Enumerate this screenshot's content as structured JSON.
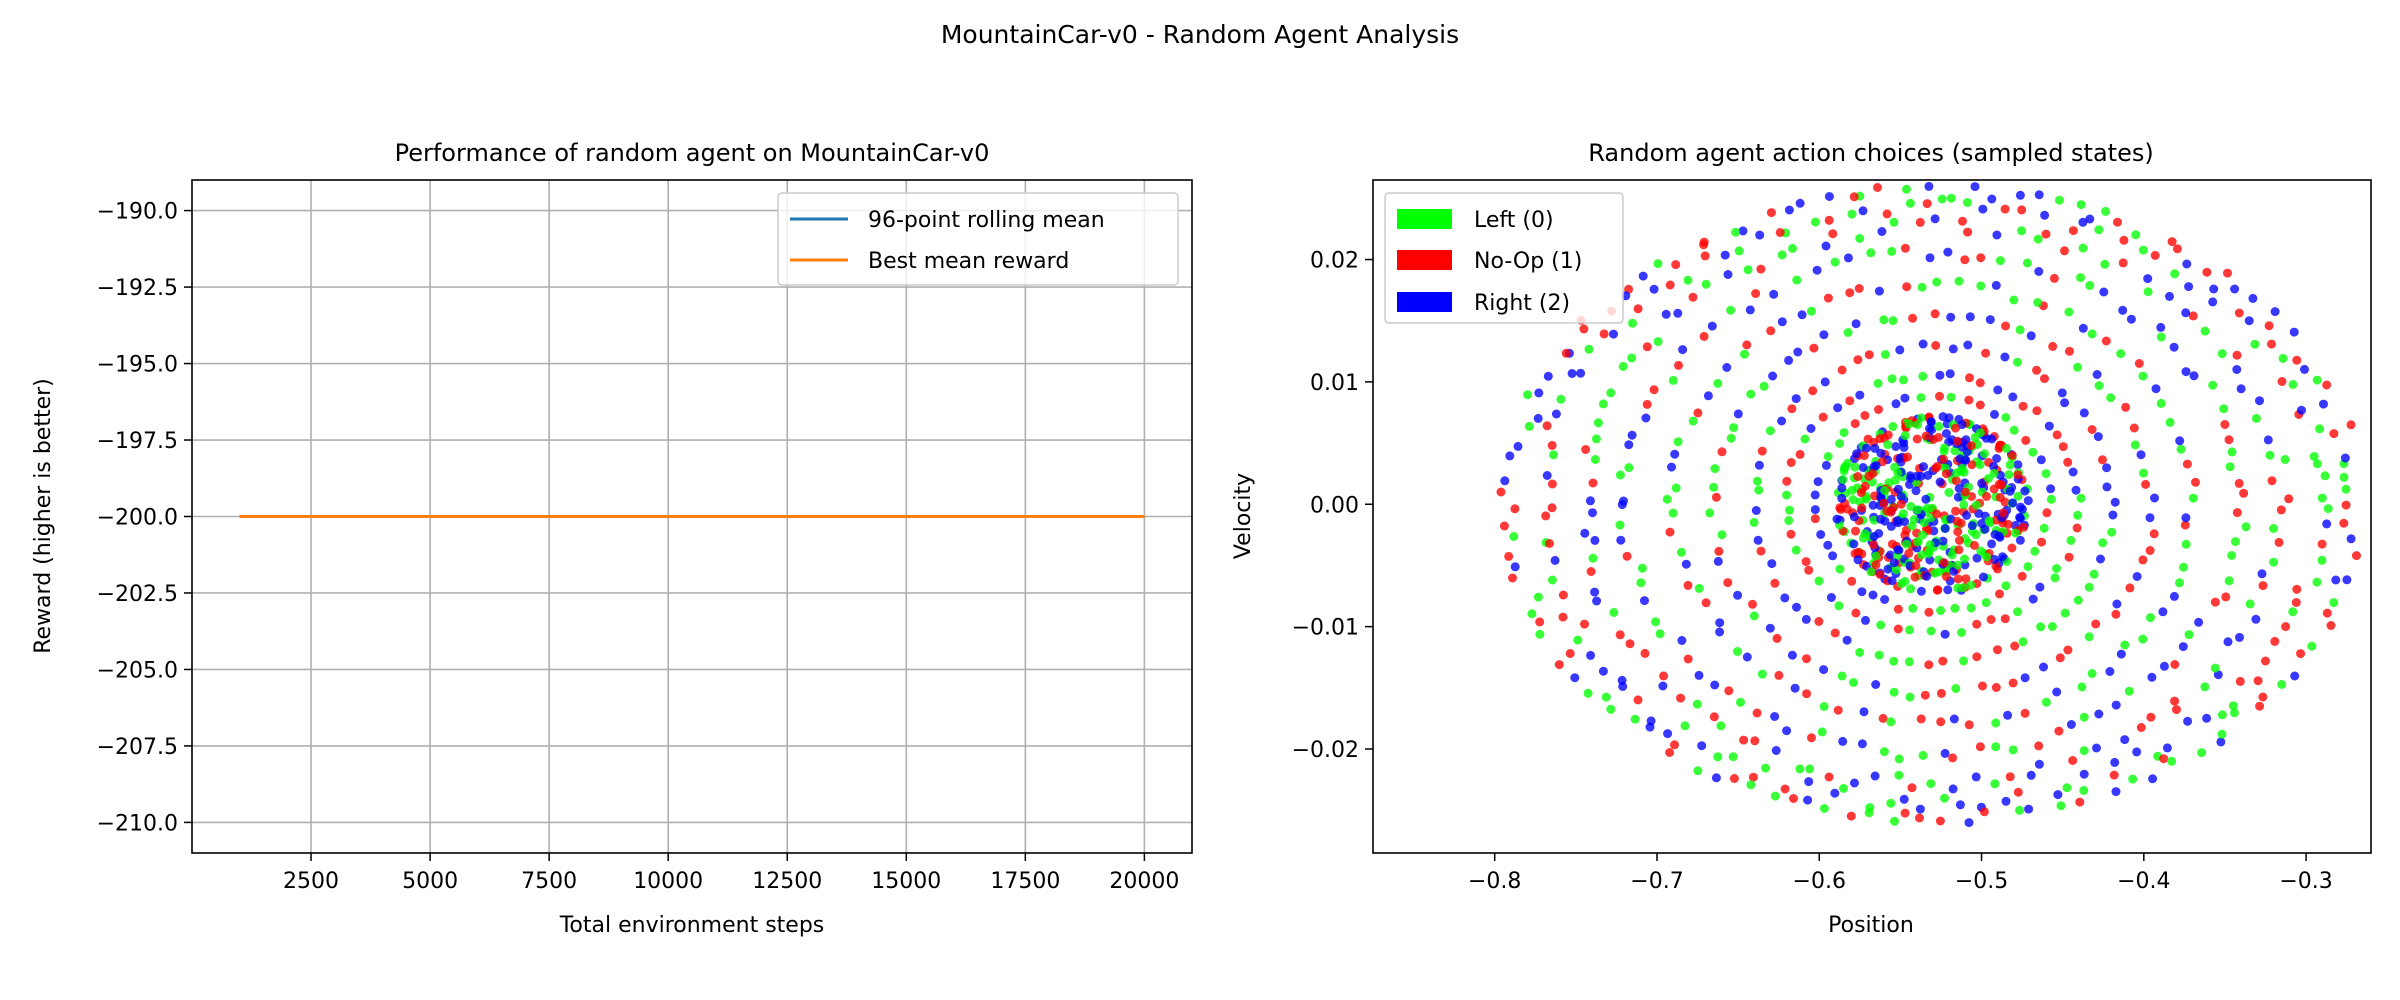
{
  "figure_title": "MountainCar-v0 - Random Agent Analysis",
  "colors": {
    "rolling_mean": "#1f77b4",
    "best_mean": "#ff7f0e",
    "left": "#00ff00",
    "noop": "#ff0000",
    "right": "#0000ff",
    "grid": "#b0b0b0"
  },
  "chart_data": [
    {
      "type": "line",
      "title": "Performance of random agent on MountainCar-v0",
      "xlabel": "Total environment steps",
      "ylabel": "Reward (higher is better)",
      "xlim": [
        0,
        21000
      ],
      "ylim": [
        -211,
        -189
      ],
      "xticks": [
        2500,
        5000,
        7500,
        10000,
        12500,
        15000,
        17500,
        20000
      ],
      "yticks": [
        -190.0,
        -192.5,
        -195.0,
        -197.5,
        -200.0,
        -202.5,
        -205.0,
        -207.5,
        -210.0
      ],
      "ytick_labels": [
        "−190.0",
        "−192.5",
        "−195.0",
        "−197.5",
        "−200.0",
        "−202.5",
        "−205.0",
        "−207.5",
        "−210.0"
      ],
      "grid": true,
      "legend_position": "top-right",
      "series": [
        {
          "name": "96-point rolling mean",
          "x": [
            1000,
            20000
          ],
          "values": [
            -200,
            -200
          ]
        },
        {
          "name": "Best mean reward",
          "x": [
            1000,
            20000
          ],
          "values": [
            -200,
            -200
          ]
        }
      ]
    },
    {
      "type": "scatter",
      "title": "Random agent action choices (sampled states)",
      "xlabel": "Position",
      "ylabel": "Velocity",
      "xlim": [
        -0.875,
        -0.26
      ],
      "ylim": [
        -0.0285,
        0.0265
      ],
      "xticks": [
        -0.8,
        -0.7,
        -0.6,
        -0.5,
        -0.4,
        -0.3
      ],
      "xtick_labels": [
        "−0.8",
        "−0.7",
        "−0.6",
        "−0.5",
        "−0.4",
        "−0.3"
      ],
      "yticks": [
        0.02,
        0.01,
        0.0,
        -0.01,
        -0.02
      ],
      "ytick_labels": [
        "0.02",
        "0.01",
        "0.00",
        "−0.01",
        "−0.02"
      ],
      "grid": false,
      "legend_position": "top-left",
      "center": [
        -0.53,
        0.0
      ],
      "ring_radii": [
        [
          0.045,
          0.0055
        ],
        [
          0.058,
          0.0072
        ],
        [
          0.072,
          0.0088
        ],
        [
          0.09,
          0.0105
        ],
        [
          0.11,
          0.013
        ],
        [
          0.135,
          0.0155
        ],
        [
          0.16,
          0.018
        ],
        [
          0.19,
          0.0205
        ],
        [
          0.215,
          0.0228
        ],
        [
          0.24,
          0.0245
        ],
        [
          0.26,
          0.0255
        ]
      ],
      "series": [
        {
          "name": "Left (0)",
          "action": 0
        },
        {
          "name": "No-Op (1)",
          "action": 1
        },
        {
          "name": "Right (2)",
          "action": 2
        }
      ]
    }
  ]
}
